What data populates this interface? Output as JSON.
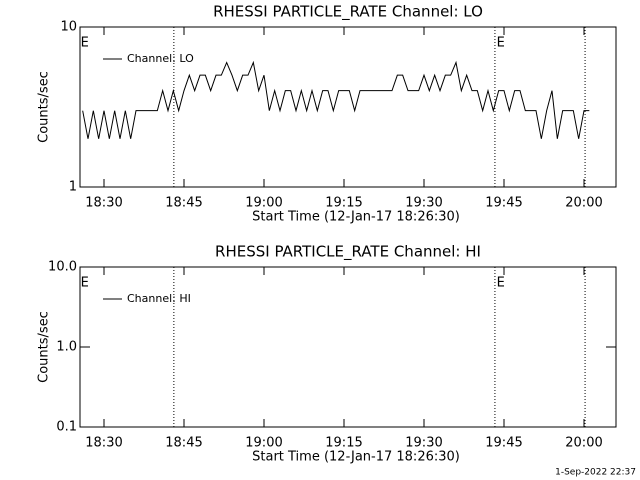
{
  "chart_data": [
    {
      "type": "line",
      "title": "RHESSI PARTICLE_RATE Channel: LO",
      "xlabel": "Start Time (12-Jan-17 18:26:30)",
      "ylabel": "Counts/sec",
      "x": [
        1106,
        1107,
        1108,
        1109,
        1110,
        1111,
        1112,
        1113,
        1114,
        1115,
        1116,
        1117,
        1118,
        1119,
        1120,
        1121,
        1122,
        1123,
        1124,
        1125,
        1126,
        1127,
        1128,
        1129,
        1130,
        1131,
        1132,
        1133,
        1134,
        1135,
        1136,
        1137,
        1138,
        1139,
        1140,
        1141,
        1142,
        1143,
        1144,
        1145,
        1146,
        1147,
        1148,
        1149,
        1150,
        1151,
        1152,
        1153,
        1154,
        1155,
        1156,
        1157,
        1158,
        1159,
        1160,
        1161,
        1162,
        1163,
        1164,
        1165,
        1166,
        1167,
        1168,
        1169,
        1170,
        1171,
        1172,
        1173,
        1174,
        1175,
        1176,
        1177,
        1178,
        1179,
        1180,
        1181,
        1182,
        1183,
        1184,
        1185,
        1186,
        1187,
        1188,
        1189,
        1190,
        1191,
        1192,
        1193,
        1194,
        1195,
        1196,
        1197,
        1198,
        1199,
        1200,
        1201
      ],
      "series": [
        {
          "name": "Channel: LO",
          "color": "#000000",
          "values": [
            3,
            2,
            3,
            2,
            3,
            2,
            3,
            2,
            3,
            2,
            3,
            3,
            3,
            3,
            3,
            4,
            3,
            4,
            3,
            4,
            5,
            4,
            5,
            5,
            4,
            5,
            5,
            6,
            5,
            4,
            5,
            5,
            6,
            4,
            5,
            3,
            4,
            3,
            4,
            4,
            3,
            4,
            3,
            4,
            3,
            4,
            4,
            3,
            4,
            4,
            4,
            3,
            4,
            4,
            4,
            4,
            4,
            4,
            4,
            5,
            5,
            4,
            4,
            4,
            5,
            4,
            5,
            4,
            5,
            5,
            6,
            4,
            5,
            4,
            4,
            3,
            4,
            3,
            4,
            4,
            3,
            4,
            4,
            3,
            3,
            3,
            2,
            3,
            4,
            2,
            3,
            3,
            3,
            2,
            3,
            3
          ]
        }
      ],
      "xlim": [
        1105.5,
        1206
      ],
      "xticks": [
        {
          "value": 1110,
          "label": "18:30"
        },
        {
          "value": 1125,
          "label": "18:45"
        },
        {
          "value": 1140,
          "label": "19:00"
        },
        {
          "value": 1155,
          "label": "19:15"
        },
        {
          "value": 1170,
          "label": "19:30"
        },
        {
          "value": 1185,
          "label": "19:45"
        },
        {
          "value": 1200,
          "label": "20:00"
        }
      ],
      "ylim": [
        1,
        10
      ],
      "yticks": [
        1,
        10
      ],
      "log_y": true,
      "vlines": [
        1123.1,
        1183.3,
        1200.2
      ],
      "annotations": [
        {
          "text": "E",
          "x": 1106
        },
        {
          "text": "E",
          "x": 1184
        }
      ]
    },
    {
      "type": "line",
      "title": "RHESSI PARTICLE_RATE Channel: HI",
      "xlabel": "Start Time (12-Jan-17 18:26:30)",
      "ylabel": "Counts/sec",
      "x": [],
      "series": [
        {
          "name": "Channel: HI",
          "color": "#000000",
          "values": []
        }
      ],
      "xlim": [
        1105.5,
        1206
      ],
      "xticks": [
        {
          "value": 1110,
          "label": "18:30"
        },
        {
          "value": 1125,
          "label": "18:45"
        },
        {
          "value": 1140,
          "label": "19:00"
        },
        {
          "value": 1155,
          "label": "19:15"
        },
        {
          "value": 1170,
          "label": "19:30"
        },
        {
          "value": 1185,
          "label": "19:45"
        },
        {
          "value": 1200,
          "label": "20:00"
        }
      ],
      "ylim": [
        0.1,
        10
      ],
      "yticks": [
        {
          "value": 0.1,
          "label": "0.1"
        },
        {
          "value": 1,
          "label": "1.0"
        },
        {
          "value": 10,
          "label": "10.0"
        }
      ],
      "log_y": true,
      "vlines": [
        1123.1,
        1183.3,
        1200.2
      ],
      "annotations": [
        {
          "text": "E",
          "x": 1106
        },
        {
          "text": "E",
          "x": 1184
        }
      ]
    }
  ],
  "footer": "1-Sep-2022 22:37"
}
